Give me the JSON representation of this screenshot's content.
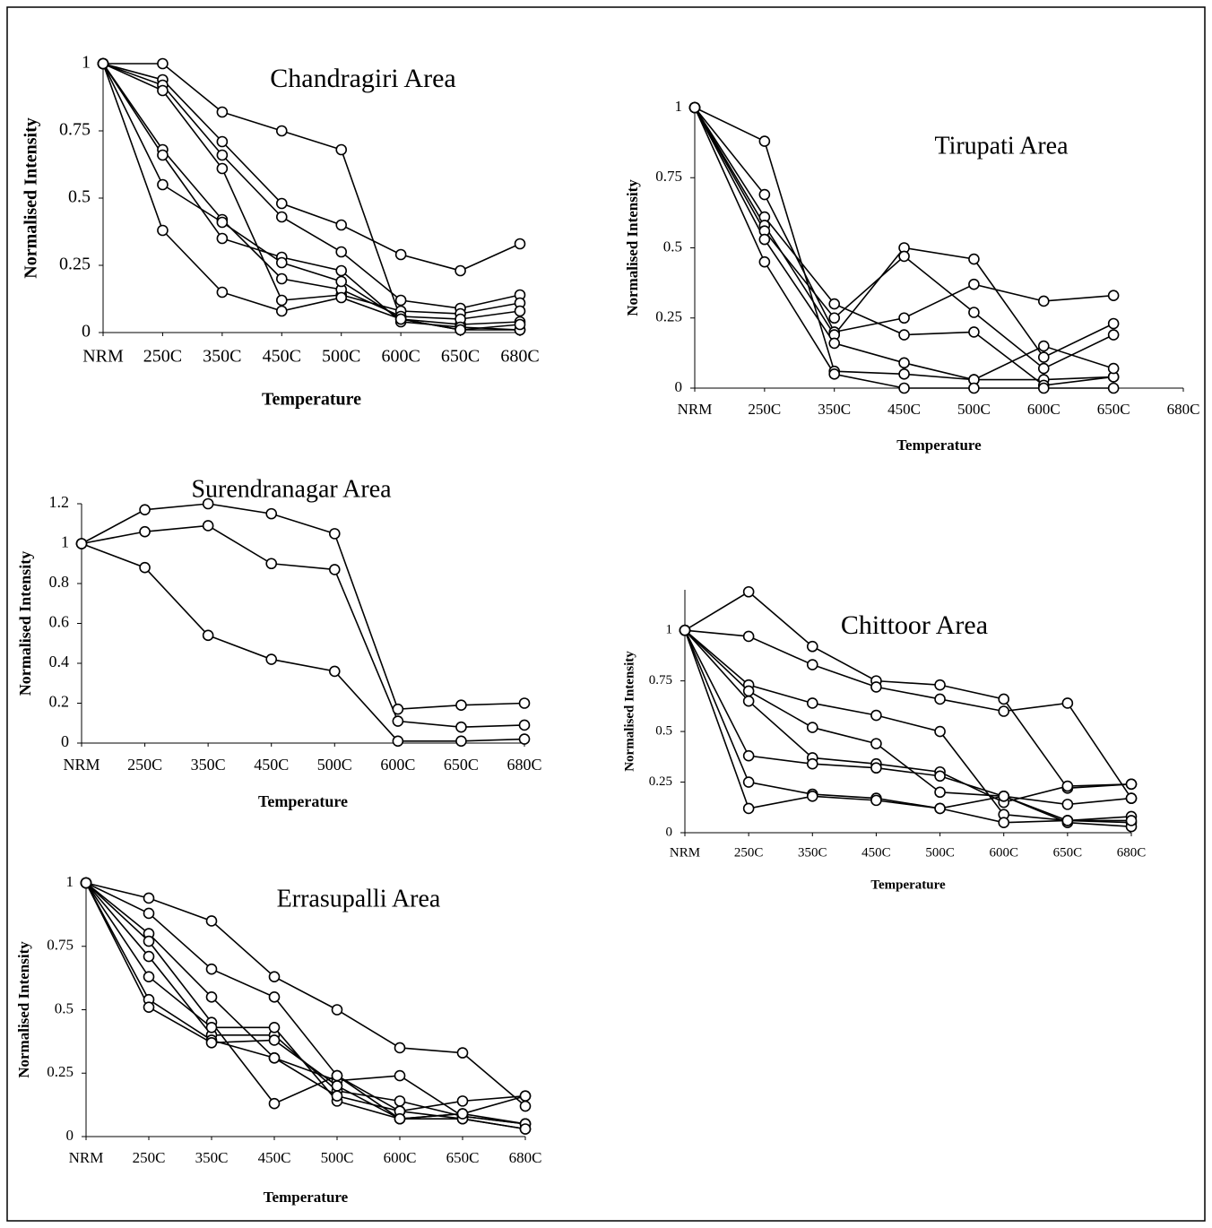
{
  "chart_data": [
    {
      "type": "line",
      "title": "Chandragiri Area",
      "x_label": "Temperature",
      "y_label": "Normalised Intensity",
      "color": "#000000",
      "categories": [
        "NRM",
        "250C",
        "350C",
        "450C",
        "500C",
        "600C",
        "650C",
        "680C"
      ],
      "ylim": [
        0,
        1
      ],
      "yticks": [
        0,
        0.25,
        0.5,
        0.75,
        1
      ],
      "series": [
        {
          "values": [
            1,
            1.0,
            0.82,
            0.75,
            0.68,
            0.05,
            0.03,
            0.04
          ]
        },
        {
          "values": [
            1,
            0.94,
            0.71,
            0.48,
            0.4,
            0.29,
            0.23,
            0.33
          ]
        },
        {
          "values": [
            1,
            0.92,
            0.66,
            0.43,
            0.3,
            0.12,
            0.09,
            0.14
          ]
        },
        {
          "values": [
            1,
            0.9,
            0.61,
            0.12,
            0.14,
            0.08,
            0.07,
            0.11
          ]
        },
        {
          "values": [
            1,
            0.68,
            0.42,
            0.2,
            0.16,
            0.06,
            0.05,
            0.08
          ]
        },
        {
          "values": [
            1,
            0.66,
            0.35,
            0.28,
            0.23,
            0.04,
            0.02,
            0.01
          ]
        },
        {
          "values": [
            1,
            0.55,
            0.41,
            0.26,
            0.19,
            0.05,
            0.01,
            0.01
          ]
        },
        {
          "values": [
            1,
            0.38,
            0.15,
            0.08,
            0.13,
            0.05,
            0.01,
            0.03
          ]
        }
      ]
    },
    {
      "type": "line",
      "title": "Tirupati Area",
      "x_label": "Temperature",
      "y_label": "Normalised Intensity",
      "color": "#000000",
      "categories": [
        "NRM",
        "250C",
        "350C",
        "450C",
        "500C",
        "600C",
        "650C",
        "680C"
      ],
      "ylim": [
        0,
        1
      ],
      "yticks": [
        0,
        0.25,
        0.5,
        0.75,
        1
      ],
      "series": [
        {
          "values": [
            1,
            0.88,
            0.06,
            0.05,
            0.03,
            0.03,
            0.04,
            null
          ]
        },
        {
          "values": [
            1,
            0.69,
            0.2,
            0.25,
            0.37,
            0.31,
            0.33,
            null
          ]
        },
        {
          "values": [
            1,
            0.61,
            0.3,
            0.19,
            0.2,
            0.01,
            0.04,
            null
          ]
        },
        {
          "values": [
            1,
            0.58,
            0.19,
            0.5,
            0.46,
            0.11,
            0.23,
            null
          ]
        },
        {
          "values": [
            1,
            0.56,
            0.25,
            0.47,
            0.27,
            0.07,
            0.19,
            null
          ]
        },
        {
          "values": [
            1,
            0.53,
            0.16,
            0.09,
            0.03,
            0.15,
            0.07,
            null
          ]
        },
        {
          "values": [
            1,
            0.45,
            0.05,
            0.0,
            0.0,
            0.0,
            0.0,
            null
          ]
        }
      ]
    },
    {
      "type": "line",
      "title": "Surendranagar Area",
      "x_label": "Temperature",
      "y_label": "Normalised Intensity",
      "color": "#000000",
      "categories": [
        "NRM",
        "250C",
        "350C",
        "450C",
        "500C",
        "600C",
        "650C",
        "680C"
      ],
      "ylim": [
        0,
        1.2
      ],
      "yticks": [
        0,
        0.2,
        0.4,
        0.6,
        0.8,
        1,
        1.2
      ],
      "series": [
        {
          "values": [
            1,
            1.17,
            1.2,
            1.15,
            1.05,
            0.17,
            0.19,
            0.2
          ]
        },
        {
          "values": [
            1,
            1.06,
            1.09,
            0.9,
            0.87,
            0.11,
            0.08,
            0.09
          ]
        },
        {
          "values": [
            1,
            0.88,
            0.54,
            0.42,
            0.36,
            0.01,
            0.01,
            0.02
          ]
        }
      ]
    },
    {
      "type": "line",
      "title": "Chittoor Area",
      "x_label": "Temperature",
      "y_label": "Normalised Intensity",
      "color": "#000000",
      "categories": [
        "NRM",
        "250C",
        "350C",
        "450C",
        "500C",
        "600C",
        "650C",
        "680C"
      ],
      "ylim": [
        0,
        1.2
      ],
      "yticks": [
        0,
        0.25,
        0.5,
        0.75,
        1
      ],
      "series": [
        {
          "values": [
            1,
            1.19,
            0.92,
            0.75,
            0.73,
            0.66,
            0.22,
            0.24
          ]
        },
        {
          "values": [
            1,
            0.97,
            0.83,
            0.72,
            0.66,
            0.6,
            0.64,
            0.17
          ]
        },
        {
          "values": [
            1,
            0.73,
            0.64,
            0.58,
            0.5,
            0.09,
            0.06,
            0.05
          ]
        },
        {
          "values": [
            1,
            0.7,
            0.52,
            0.44,
            0.2,
            0.18,
            0.05,
            0.03
          ]
        },
        {
          "values": [
            1,
            0.65,
            0.37,
            0.34,
            0.3,
            0.15,
            0.23,
            0.24
          ]
        },
        {
          "values": [
            1,
            0.38,
            0.34,
            0.32,
            0.28,
            0.18,
            0.06,
            0.08
          ]
        },
        {
          "values": [
            1,
            0.25,
            0.19,
            0.17,
            0.12,
            0.05,
            0.06,
            0.06
          ]
        },
        {
          "values": [
            1,
            0.12,
            0.18,
            0.16,
            0.12,
            0.18,
            0.14,
            0.17
          ]
        }
      ]
    },
    {
      "type": "line",
      "title": "Errasupalli Area",
      "x_label": "Temperature",
      "y_label": "Normalised Intensity",
      "color": "#000000",
      "categories": [
        "NRM",
        "250C",
        "350C",
        "450C",
        "500C",
        "600C",
        "650C",
        "680C"
      ],
      "ylim": [
        0,
        1
      ],
      "yticks": [
        0,
        0.25,
        0.5,
        0.75,
        1
      ],
      "series": [
        {
          "values": [
            1,
            0.94,
            0.85,
            0.63,
            0.5,
            0.35,
            0.33,
            0.12
          ]
        },
        {
          "values": [
            1,
            0.88,
            0.66,
            0.55,
            0.24,
            0.07,
            0.07,
            0.03
          ]
        },
        {
          "values": [
            1,
            0.8,
            0.55,
            0.31,
            0.22,
            0.24,
            0.08,
            0.05
          ]
        },
        {
          "values": [
            1,
            0.77,
            0.45,
            0.13,
            0.24,
            0.1,
            0.14,
            0.16
          ]
        },
        {
          "values": [
            1,
            0.71,
            0.4,
            0.4,
            0.18,
            0.14,
            0.08,
            0.05
          ]
        },
        {
          "values": [
            1,
            0.63,
            0.43,
            0.43,
            0.14,
            0.07,
            0.09,
            0.05
          ]
        },
        {
          "values": [
            1,
            0.54,
            0.38,
            0.31,
            0.16,
            0.1,
            0.07,
            0.03
          ]
        },
        {
          "values": [
            1,
            0.51,
            0.37,
            0.38,
            0.2,
            0.07,
            0.09,
            0.16
          ]
        }
      ]
    }
  ]
}
